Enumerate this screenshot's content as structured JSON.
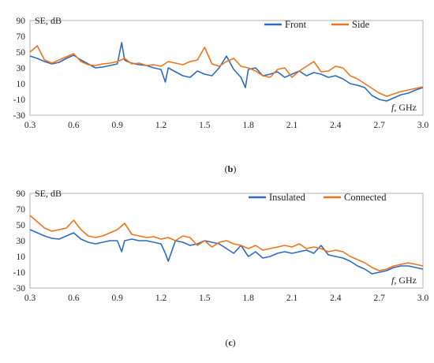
{
  "chart_data": [
    {
      "type": "line",
      "ylabel": "SE, dB",
      "xlabel_var": "f",
      "xlabel_unit": "GHz",
      "xlim": [
        0.3,
        3.0
      ],
      "ylim": [
        -30,
        90
      ],
      "xticks": [
        "0.3",
        "0.6",
        "0.9",
        "1.2",
        "1.5",
        "1.8",
        "2.1",
        "2.4",
        "2.7",
        "3.0"
      ],
      "yticks": [
        "90",
        "70",
        "50",
        "30",
        "10",
        "-10",
        "-30"
      ],
      "grid": false,
      "legend_position": "top-right",
      "caption_open": "(",
      "caption_letter": "b",
      "caption_close": ")",
      "series": [
        {
          "name": "Front",
          "color": "#2b6bc0",
          "x": [
            0.3,
            0.35,
            0.4,
            0.45,
            0.5,
            0.55,
            0.6,
            0.65,
            0.7,
            0.75,
            0.8,
            0.85,
            0.9,
            0.93,
            0.95,
            0.97,
            1.0,
            1.05,
            1.1,
            1.15,
            1.2,
            1.23,
            1.25,
            1.3,
            1.35,
            1.4,
            1.45,
            1.5,
            1.55,
            1.6,
            1.65,
            1.7,
            1.75,
            1.78,
            1.8,
            1.85,
            1.9,
            1.95,
            2.0,
            2.05,
            2.1,
            2.15,
            2.2,
            2.25,
            2.3,
            2.35,
            2.4,
            2.45,
            2.5,
            2.55,
            2.6,
            2.65,
            2.7,
            2.75,
            2.8,
            2.85,
            2.9,
            2.95,
            3.0
          ],
          "y": [
            45,
            42,
            38,
            35,
            37,
            42,
            46,
            40,
            35,
            30,
            31,
            33,
            35,
            62,
            40,
            38,
            36,
            34,
            33,
            30,
            28,
            12,
            30,
            25,
            20,
            18,
            26,
            22,
            20,
            30,
            45,
            28,
            18,
            5,
            28,
            30,
            20,
            22,
            25,
            18,
            22,
            26,
            20,
            24,
            22,
            18,
            20,
            16,
            10,
            8,
            5,
            -5,
            -10,
            -12,
            -8,
            -4,
            -2,
            2,
            5
          ]
        },
        {
          "name": "Side",
          "color": "#f0731c",
          "x": [
            0.3,
            0.35,
            0.4,
            0.45,
            0.5,
            0.55,
            0.6,
            0.65,
            0.7,
            0.75,
            0.8,
            0.85,
            0.9,
            0.95,
            1.0,
            1.05,
            1.1,
            1.15,
            1.2,
            1.25,
            1.3,
            1.35,
            1.4,
            1.45,
            1.5,
            1.55,
            1.6,
            1.65,
            1.7,
            1.75,
            1.8,
            1.85,
            1.9,
            1.95,
            2.0,
            2.05,
            2.1,
            2.15,
            2.2,
            2.25,
            2.3,
            2.35,
            2.4,
            2.45,
            2.5,
            2.55,
            2.6,
            2.65,
            2.7,
            2.75,
            2.8,
            2.85,
            2.9,
            2.95,
            3.0
          ],
          "y": [
            50,
            58,
            40,
            36,
            40,
            44,
            48,
            38,
            34,
            33,
            35,
            36,
            38,
            42,
            35,
            36,
            33,
            34,
            32,
            38,
            36,
            34,
            38,
            40,
            56,
            35,
            32,
            38,
            42,
            32,
            30,
            26,
            20,
            18,
            28,
            30,
            18,
            26,
            32,
            38,
            25,
            26,
            32,
            30,
            20,
            16,
            10,
            4,
            -2,
            -6,
            -3,
            0,
            2,
            4,
            6
          ]
        }
      ]
    },
    {
      "type": "line",
      "ylabel": "SE, dB",
      "xlabel_var": "f",
      "xlabel_unit": "GHz",
      "xlim": [
        0.3,
        3.0
      ],
      "ylim": [
        -30,
        90
      ],
      "xticks": [
        "0.3",
        "0.6",
        "0.9",
        "1.2",
        "1.5",
        "1.8",
        "2.1",
        "2.4",
        "2.7",
        "3.0"
      ],
      "yticks": [
        "90",
        "70",
        "50",
        "30",
        "10",
        "-10",
        "-30"
      ],
      "grid": false,
      "legend_position": "top-right",
      "caption_open": "(",
      "caption_letter": "c",
      "caption_close": ")",
      "series": [
        {
          "name": "Insulated",
          "color": "#2b6bc0",
          "x": [
            0.3,
            0.35,
            0.4,
            0.45,
            0.5,
            0.55,
            0.6,
            0.65,
            0.7,
            0.75,
            0.8,
            0.85,
            0.9,
            0.93,
            0.95,
            1.0,
            1.05,
            1.1,
            1.15,
            1.2,
            1.23,
            1.25,
            1.3,
            1.35,
            1.4,
            1.45,
            1.5,
            1.55,
            1.6,
            1.65,
            1.7,
            1.75,
            1.8,
            1.85,
            1.9,
            1.95,
            2.0,
            2.05,
            2.1,
            2.15,
            2.2,
            2.25,
            2.3,
            2.35,
            2.4,
            2.45,
            2.5,
            2.55,
            2.6,
            2.65,
            2.7,
            2.75,
            2.8,
            2.85,
            2.9,
            2.95,
            3.0
          ],
          "y": [
            44,
            40,
            36,
            33,
            32,
            36,
            40,
            32,
            28,
            26,
            28,
            30,
            30,
            16,
            30,
            32,
            30,
            30,
            28,
            26,
            14,
            4,
            30,
            28,
            24,
            26,
            30,
            28,
            26,
            20,
            14,
            24,
            10,
            16,
            8,
            10,
            14,
            16,
            14,
            16,
            18,
            14,
            24,
            12,
            10,
            8,
            4,
            -2,
            -6,
            -12,
            -10,
            -8,
            -4,
            -2,
            -2,
            -4,
            -6
          ]
        },
        {
          "name": "Connected",
          "color": "#f0731c",
          "x": [
            0.3,
            0.35,
            0.4,
            0.45,
            0.5,
            0.55,
            0.6,
            0.65,
            0.7,
            0.75,
            0.8,
            0.85,
            0.9,
            0.95,
            1.0,
            1.05,
            1.1,
            1.15,
            1.2,
            1.25,
            1.3,
            1.35,
            1.4,
            1.45,
            1.5,
            1.55,
            1.6,
            1.65,
            1.7,
            1.75,
            1.8,
            1.85,
            1.9,
            1.95,
            2.0,
            2.05,
            2.1,
            2.15,
            2.2,
            2.25,
            2.3,
            2.35,
            2.4,
            2.45,
            2.5,
            2.55,
            2.6,
            2.65,
            2.7,
            2.75,
            2.8,
            2.85,
            2.9,
            2.95,
            3.0
          ],
          "y": [
            62,
            54,
            46,
            42,
            44,
            46,
            56,
            44,
            36,
            34,
            36,
            40,
            44,
            52,
            38,
            36,
            34,
            35,
            32,
            34,
            30,
            36,
            34,
            24,
            30,
            22,
            28,
            30,
            26,
            24,
            20,
            24,
            18,
            20,
            22,
            24,
            22,
            26,
            20,
            22,
            20,
            16,
            18,
            16,
            10,
            6,
            2,
            -4,
            -8,
            -6,
            -2,
            0,
            2,
            0,
            -2
          ]
        }
      ]
    }
  ]
}
